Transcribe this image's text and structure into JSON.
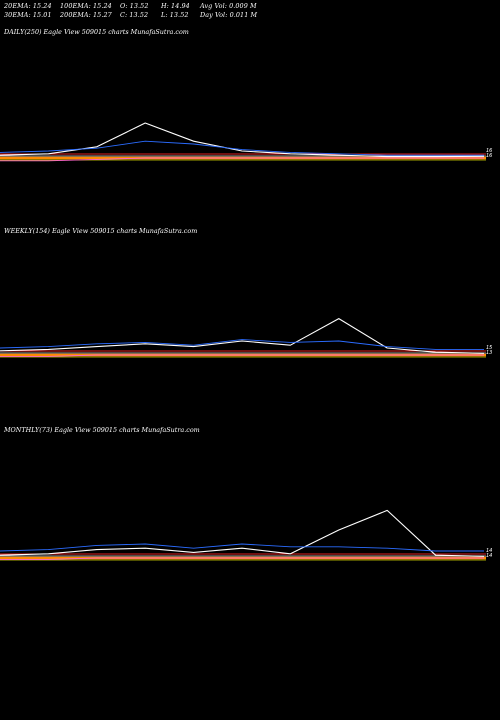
{
  "header": {
    "row1": {
      "ema20": "20EMA: 15.24",
      "ema100": "100EMA: 15.24",
      "open": "O: 13.52",
      "high": "H: 14.94",
      "avg_vol": "Avg Vol: 0.009 M"
    },
    "row2": {
      "ema30": "30EMA: 15.01",
      "ema200": "200EMA: 15.27",
      "close": "C: 13.52",
      "low": "L: 13.52",
      "day_vol": "Day Vol: 0.011 M"
    }
  },
  "panels": [
    {
      "title": "DAILY(250) Eagle   View  509015 charts MunafaSutra.com"
    },
    {
      "title": "WEEKLY(154) Eagle   View  509015 charts MunafaSutra.com"
    },
    {
      "title": "MONTHLY(73) Eagle   View  509015 charts MunafaSutra.com"
    }
  ],
  "colors": {
    "price": "#ffffff",
    "ema_blue": "#2b6cff",
    "ema_orange": "#ff8a00",
    "ema_red": "#e02020",
    "ema_pink": "#ff66cc",
    "ema_gray": "#9a9a9a",
    "ema_yellow": "#d8d800"
  },
  "chart_data": [
    {
      "type": "line",
      "title": "DAILY(250) Eagle   View  509015 charts MunafaSutra.com",
      "x": [
        0,
        10,
        20,
        30,
        40,
        50,
        60,
        70,
        80,
        90,
        100
      ],
      "series": [
        {
          "values": [
            13.6,
            13.7,
            14.2,
            15.9,
            14.6,
            13.9,
            13.7,
            13.6,
            13.5,
            13.5,
            13.52
          ]
        },
        {
          "values": [
            13.8,
            13.9,
            14.1,
            14.6,
            14.4,
            14.0,
            13.8,
            13.7,
            13.6,
            13.6,
            13.6
          ]
        },
        {
          "values": [
            13.2,
            13.2,
            13.3,
            13.4,
            13.4,
            13.4,
            13.4,
            13.4,
            13.4,
            13.4,
            13.4
          ]
        }
      ],
      "end_labels": [
        "16",
        "16"
      ]
    },
    {
      "type": "line",
      "title": "WEEKLY(154) Eagle   View  509015 charts MunafaSutra.com",
      "x": [
        0,
        10,
        20,
        30,
        40,
        50,
        60,
        70,
        80,
        90,
        100
      ],
      "series": [
        {
          "values": [
            13.7,
            13.8,
            14.0,
            14.2,
            14.0,
            14.4,
            14.1,
            16.0,
            13.9,
            13.6,
            13.52
          ]
        },
        {
          "values": [
            13.9,
            14.0,
            14.2,
            14.3,
            14.1,
            14.5,
            14.3,
            14.4,
            14.0,
            13.8,
            13.8
          ]
        },
        {
          "values": [
            13.3,
            13.3,
            13.4,
            13.4,
            13.4,
            13.4,
            13.4,
            13.4,
            13.4,
            13.4,
            13.4
          ]
        }
      ],
      "end_labels": [
        "15",
        "13"
      ]
    },
    {
      "type": "line",
      "title": "MONTHLY(73) Eagle   View  509015 charts MunafaSutra.com",
      "x": [
        0,
        10,
        20,
        30,
        40,
        50,
        60,
        70,
        80,
        90,
        100
      ],
      "series": [
        {
          "values": [
            13.6,
            13.7,
            14.0,
            14.1,
            13.8,
            14.1,
            13.7,
            15.4,
            16.8,
            13.6,
            13.52
          ]
        },
        {
          "values": [
            13.9,
            14.0,
            14.3,
            14.4,
            14.1,
            14.4,
            14.2,
            14.2,
            14.1,
            13.9,
            13.9
          ]
        },
        {
          "values": [
            13.3,
            13.3,
            13.4,
            13.4,
            13.4,
            13.4,
            13.4,
            13.4,
            13.4,
            13.4,
            13.4
          ]
        }
      ],
      "end_labels": [
        "14",
        "14"
      ]
    }
  ]
}
